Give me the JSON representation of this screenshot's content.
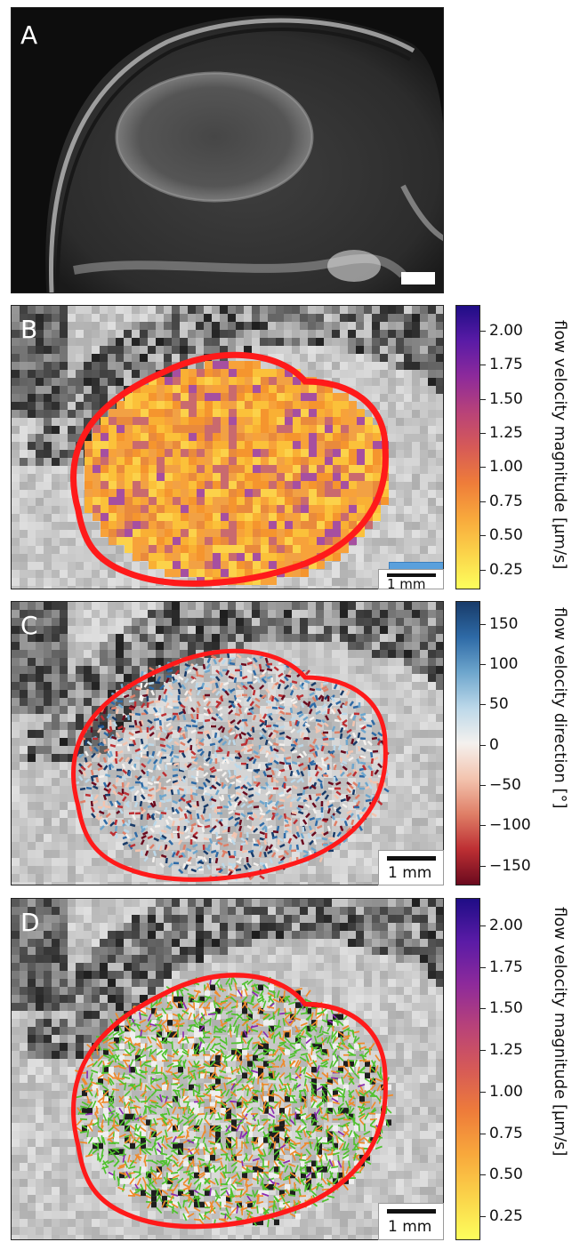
{
  "panels": {
    "a": {
      "letter": "A"
    },
    "b": {
      "letter": "B",
      "scale_label": "1 mm"
    },
    "c": {
      "letter": "C",
      "scale_label": "1 mm"
    },
    "d": {
      "letter": "D",
      "scale_label": "1 mm"
    }
  },
  "colorbars": {
    "magnitude": {
      "title": "flow velocity magnitude [µm/s]",
      "ticks": [
        "2.00",
        "1.75",
        "1.50",
        "1.25",
        "1.00",
        "0.75",
        "0.50",
        "0.25"
      ],
      "colors": [
        "#fcfe5c",
        "#fbd34a",
        "#f8a83c",
        "#ee7c3a",
        "#d65a57",
        "#b84279",
        "#8d2a9b",
        "#5a1ba6",
        "#1f0d86"
      ]
    },
    "direction": {
      "title": "flow velocity direction [°]",
      "ticks": [
        "150",
        "100",
        "50",
        "0",
        "−50",
        "−100",
        "−150"
      ],
      "colors": [
        "#183b69",
        "#2e6aa6",
        "#6ea6cd",
        "#bcd8e9",
        "#f4f1ee",
        "#f3c4af",
        "#df7f67",
        "#bd2f33",
        "#6a0a1e"
      ]
    }
  },
  "tumor_outline_color": "#ff1a1a",
  "arrow_colors": {
    "green": "#4fc22d",
    "orange": "#f08a2a",
    "purple": "#8a2ab0"
  }
}
